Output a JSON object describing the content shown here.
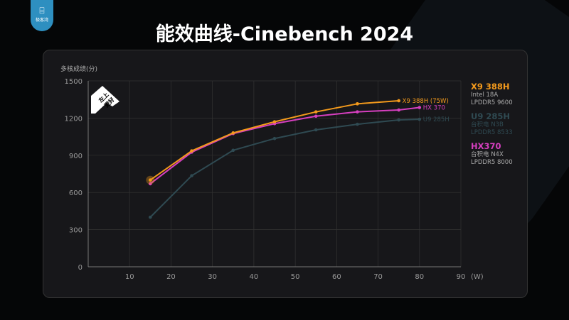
{
  "logo_text": "极客湾",
  "chart_data": {
    "type": "line",
    "title": "能效曲线-Cinebench 2024",
    "ylabel": "多核成绩(分)",
    "xlabel": "(W)",
    "xlim": [
      0,
      90
    ],
    "ylim": [
      0,
      1500
    ],
    "xticks": [
      10,
      20,
      30,
      40,
      50,
      60,
      70,
      80,
      90
    ],
    "yticks": [
      0,
      300,
      600,
      900,
      1200,
      1500
    ],
    "grid": true,
    "badge": [
      "左上",
      "更好"
    ],
    "series": [
      {
        "name": "X9 388H",
        "label": "X9 388H (75W)",
        "sub": [
          "Intel 18A",
          "LPDDR5 9600"
        ],
        "color": "#f39a1c",
        "x": [
          15,
          25,
          35,
          45,
          55,
          65,
          75
        ],
        "y": [
          700,
          935,
          1080,
          1170,
          1250,
          1315,
          1340
        ]
      },
      {
        "name": "U9 285H",
        "label": "U9 285H",
        "sub": [
          "台积电 N3B",
          "LPDDR5 8533"
        ],
        "color": "#2f4a52",
        "x": [
          15,
          25,
          35,
          45,
          55,
          65,
          75,
          80
        ],
        "y": [
          400,
          735,
          940,
          1035,
          1105,
          1150,
          1185,
          1190
        ]
      },
      {
        "name": "HX370",
        "label": "HX 370",
        "sub": [
          "台积电 N4X",
          "LPDDR5 8000"
        ],
        "color": "#d63fbf",
        "x": [
          15,
          25,
          35,
          45,
          55,
          65,
          75,
          80
        ],
        "y": [
          670,
          925,
          1075,
          1155,
          1215,
          1250,
          1265,
          1285
        ]
      }
    ]
  }
}
